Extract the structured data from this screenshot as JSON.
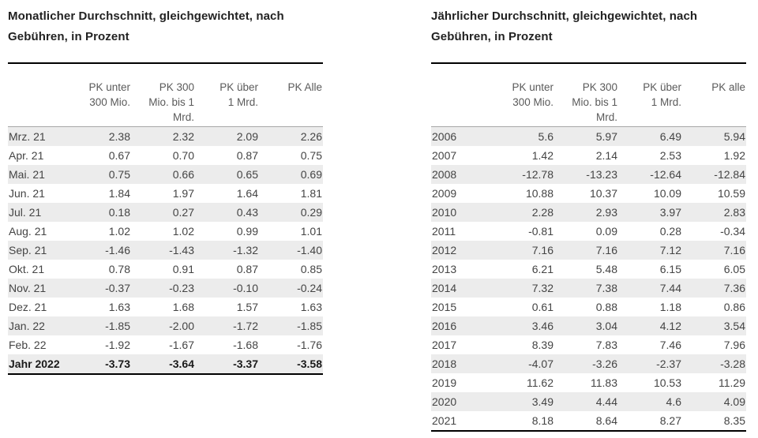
{
  "page": {
    "background": "#ffffff"
  },
  "colors": {
    "title_text": "#222222",
    "header_text": "#5a5a5a",
    "data_text": "#444444",
    "stripe": "#ececec",
    "rule_black": "#000000",
    "rule_gray": "#a8a8a8"
  },
  "tables": {
    "monthly": {
      "title": "Monatlicher Durchschnitt, gleichgewichtet, nach Gebühren, in Prozent",
      "columns": [
        "PK unter\n300 Mio.",
        "PK 300\nMio. bis 1\nMrd.",
        "PK über\n1 Mrd.",
        "PK Alle"
      ],
      "rows": [
        {
          "label": "Mrz. 21",
          "values": [
            "2.38",
            "2.32",
            "2.09",
            "2.26"
          ]
        },
        {
          "label": "Apr. 21",
          "values": [
            "0.67",
            "0.70",
            "0.87",
            "0.75"
          ]
        },
        {
          "label": "Mai. 21",
          "values": [
            "0.75",
            "0.66",
            "0.65",
            "0.69"
          ]
        },
        {
          "label": "Jun. 21",
          "values": [
            "1.84",
            "1.97",
            "1.64",
            "1.81"
          ]
        },
        {
          "label": "Jul. 21",
          "values": [
            "0.18",
            "0.27",
            "0.43",
            "0.29"
          ]
        },
        {
          "label": "Aug. 21",
          "values": [
            "1.02",
            "1.02",
            "0.99",
            "1.01"
          ]
        },
        {
          "label": "Sep. 21",
          "values": [
            "-1.46",
            "-1.43",
            "-1.32",
            "-1.40"
          ]
        },
        {
          "label": "Okt. 21",
          "values": [
            "0.78",
            "0.91",
            "0.87",
            "0.85"
          ]
        },
        {
          "label": "Nov. 21",
          "values": [
            "-0.37",
            "-0.23",
            "-0.10",
            "-0.24"
          ]
        },
        {
          "label": "Dez. 21",
          "values": [
            "1.63",
            "1.68",
            "1.57",
            "1.63"
          ]
        },
        {
          "label": "Jan. 22",
          "values": [
            "-1.85",
            "-2.00",
            "-1.72",
            "-1.85"
          ]
        },
        {
          "label": "Feb. 22",
          "values": [
            "-1.92",
            "-1.67",
            "-1.68",
            "-1.76"
          ]
        },
        {
          "label": "Jahr 2022",
          "values": [
            "-3.73",
            "-3.64",
            "-3.37",
            "-3.58"
          ],
          "bold": true
        }
      ]
    },
    "yearly": {
      "title": "Jährlicher Durchschnitt, gleichgewichtet, nach Gebühren, in Prozent",
      "columns": [
        "PK unter\n300 Mio.",
        "PK 300\nMio. bis 1\nMrd.",
        "PK über\n1 Mrd.",
        "PK alle"
      ],
      "rows": [
        {
          "label": "2006",
          "values": [
            "5.6",
            "5.97",
            "6.49",
            "5.94"
          ]
        },
        {
          "label": "2007",
          "values": [
            "1.42",
            "2.14",
            "2.53",
            "1.92"
          ]
        },
        {
          "label": "2008",
          "values": [
            "-12.78",
            "-13.23",
            "-12.64",
            "-12.84"
          ]
        },
        {
          "label": "2009",
          "values": [
            "10.88",
            "10.37",
            "10.09",
            "10.59"
          ]
        },
        {
          "label": "2010",
          "values": [
            "2.28",
            "2.93",
            "3.97",
            "2.83"
          ]
        },
        {
          "label": "2011",
          "values": [
            "-0.81",
            "0.09",
            "0.28",
            "-0.34"
          ]
        },
        {
          "label": "2012",
          "values": [
            "7.16",
            "7.16",
            "7.12",
            "7.16"
          ]
        },
        {
          "label": "2013",
          "values": [
            "6.21",
            "5.48",
            "6.15",
            "6.05"
          ]
        },
        {
          "label": "2014",
          "values": [
            "7.32",
            "7.38",
            "7.44",
            "7.36"
          ]
        },
        {
          "label": "2015",
          "values": [
            "0.61",
            "0.88",
            "1.18",
            "0.86"
          ]
        },
        {
          "label": "2016",
          "values": [
            "3.46",
            "3.04",
            "4.12",
            "3.54"
          ]
        },
        {
          "label": "2017",
          "values": [
            "8.39",
            "7.83",
            "7.46",
            "7.96"
          ]
        },
        {
          "label": "2018",
          "values": [
            "-4.07",
            "-3.26",
            "-2.37",
            "-3.28"
          ]
        },
        {
          "label": "2019",
          "values": [
            "11.62",
            "11.83",
            "10.53",
            "11.29"
          ]
        },
        {
          "label": "2020",
          "values": [
            "3.49",
            "4.44",
            "4.6",
            "4.09"
          ]
        },
        {
          "label": "2021",
          "values": [
            "8.18",
            "8.64",
            "8.27",
            "8.35"
          ]
        }
      ]
    }
  },
  "chart_data": [
    {
      "type": "table",
      "title": "Monatlicher Durchschnitt, gleichgewichtet, nach Gebühren, in Prozent",
      "columns": [
        "",
        "PK unter 300 Mio.",
        "PK 300 Mio. bis 1 Mrd.",
        "PK über 1 Mrd.",
        "PK Alle"
      ],
      "rows": [
        [
          "Mrz. 21",
          2.38,
          2.32,
          2.09,
          2.26
        ],
        [
          "Apr. 21",
          0.67,
          0.7,
          0.87,
          0.75
        ],
        [
          "Mai. 21",
          0.75,
          0.66,
          0.65,
          0.69
        ],
        [
          "Jun. 21",
          1.84,
          1.97,
          1.64,
          1.81
        ],
        [
          "Jul. 21",
          0.18,
          0.27,
          0.43,
          0.29
        ],
        [
          "Aug. 21",
          1.02,
          1.02,
          0.99,
          1.01
        ],
        [
          "Sep. 21",
          -1.46,
          -1.43,
          -1.32,
          -1.4
        ],
        [
          "Okt. 21",
          0.78,
          0.91,
          0.87,
          0.85
        ],
        [
          "Nov. 21",
          -0.37,
          -0.23,
          -0.1,
          -0.24
        ],
        [
          "Dez. 21",
          1.63,
          1.68,
          1.57,
          1.63
        ],
        [
          "Jan. 22",
          -1.85,
          -2.0,
          -1.72,
          -1.85
        ],
        [
          "Feb. 22",
          -1.92,
          -1.67,
          -1.68,
          -1.76
        ],
        [
          "Jahr 2022",
          -3.73,
          -3.64,
          -3.37,
          -3.58
        ]
      ]
    },
    {
      "type": "table",
      "title": "Jährlicher Durchschnitt, gleichgewichtet, nach Gebühren, in Prozent",
      "columns": [
        "",
        "PK unter 300 Mio.",
        "PK 300 Mio. bis 1 Mrd.",
        "PK über 1 Mrd.",
        "PK alle"
      ],
      "rows": [
        [
          "2006",
          5.6,
          5.97,
          6.49,
          5.94
        ],
        [
          "2007",
          1.42,
          2.14,
          2.53,
          1.92
        ],
        [
          "2008",
          -12.78,
          -13.23,
          -12.64,
          -12.84
        ],
        [
          "2009",
          10.88,
          10.37,
          10.09,
          10.59
        ],
        [
          "2010",
          2.28,
          2.93,
          3.97,
          2.83
        ],
        [
          "2011",
          -0.81,
          0.09,
          0.28,
          -0.34
        ],
        [
          "2012",
          7.16,
          7.16,
          7.12,
          7.16
        ],
        [
          "2013",
          6.21,
          5.48,
          6.15,
          6.05
        ],
        [
          "2014",
          7.32,
          7.38,
          7.44,
          7.36
        ],
        [
          "2015",
          0.61,
          0.88,
          1.18,
          0.86
        ],
        [
          "2016",
          3.46,
          3.04,
          4.12,
          3.54
        ],
        [
          "2017",
          8.39,
          7.83,
          7.46,
          7.96
        ],
        [
          "2018",
          -4.07,
          -3.26,
          -2.37,
          -3.28
        ],
        [
          "2019",
          11.62,
          11.83,
          10.53,
          11.29
        ],
        [
          "2020",
          3.49,
          4.44,
          4.6,
          4.09
        ],
        [
          "2021",
          8.18,
          8.64,
          8.27,
          8.35
        ]
      ]
    }
  ]
}
